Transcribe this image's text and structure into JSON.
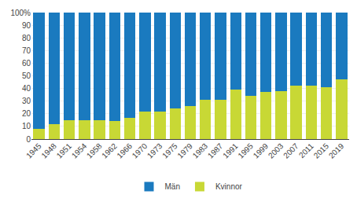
{
  "chart_data": {
    "type": "bar",
    "stacked": true,
    "categories": [
      "1945",
      "1948",
      "1951",
      "1954",
      "1958",
      "1962",
      "1966",
      "1970",
      "1973",
      "1975",
      "1979",
      "1983",
      "1987",
      "1991",
      "1995",
      "1999",
      "2003",
      "2007",
      "2011",
      "2015",
      "2019"
    ],
    "series": [
      {
        "name": "Kvinnor",
        "color": "#c8d835",
        "values": [
          8,
          12,
          15,
          15,
          15,
          14,
          17,
          22,
          22,
          24,
          26,
          31,
          31,
          39,
          34,
          37,
          38,
          42,
          42,
          41,
          47
        ]
      },
      {
        "name": "Män",
        "color": "#1a7abf",
        "values": [
          92,
          88,
          85,
          85,
          85,
          86,
          83,
          78,
          78,
          76,
          74,
          69,
          69,
          61,
          66,
          63,
          62,
          58,
          58,
          59,
          53
        ]
      }
    ],
    "ylim": [
      0,
      100
    ],
    "yticks": [
      0,
      10,
      20,
      30,
      40,
      50,
      60,
      70,
      80,
      90,
      {
        "value": 100,
        "label": "100%"
      }
    ],
    "grid": true,
    "legend": "bottom"
  }
}
